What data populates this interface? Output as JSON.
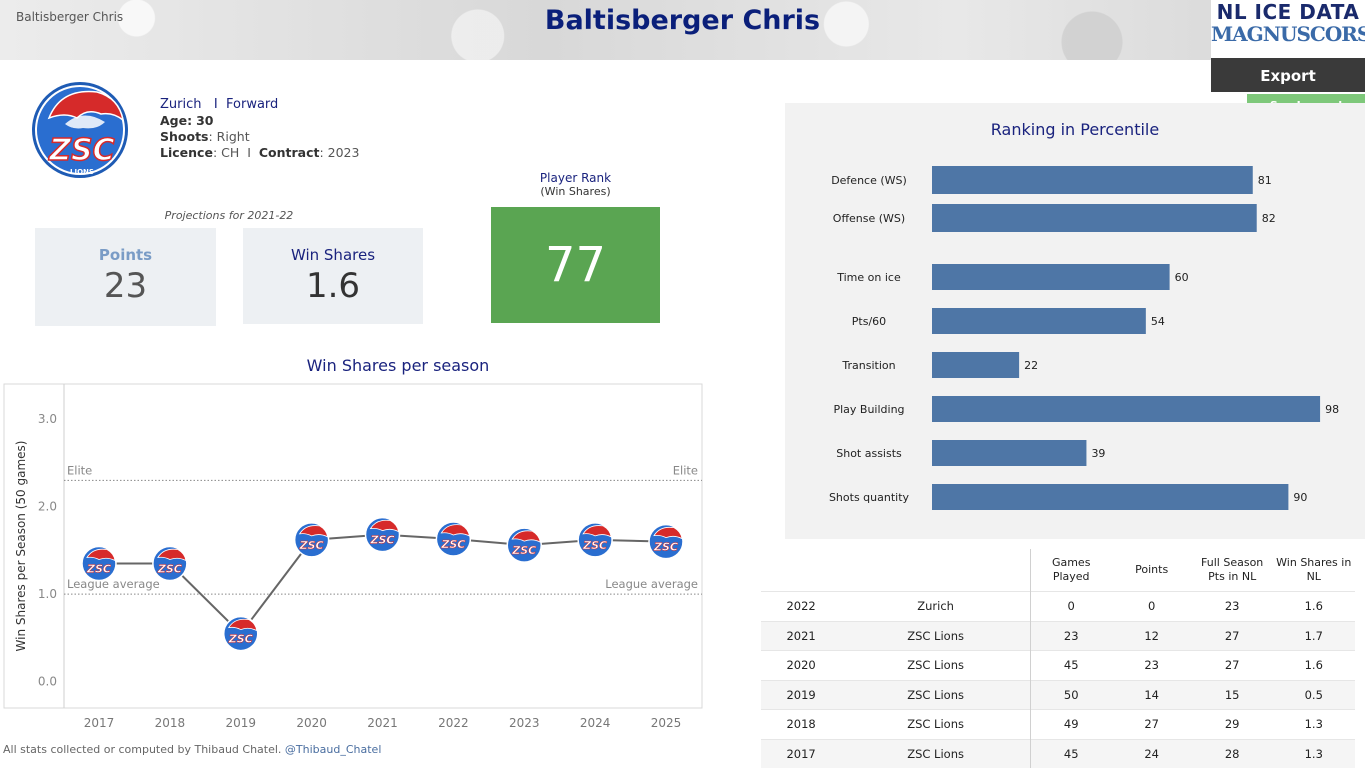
{
  "header": {
    "player_small": "Baltisberger Chris",
    "title": "Baltisberger Chris",
    "brand_line1": "NL ICE DATA",
    "brand_line2": "MAGNUSCORSI",
    "export_label": "Export",
    "legend_label": "See Legend"
  },
  "player": {
    "team": "Zurich",
    "separator": "I",
    "position": "Forward",
    "age_label": "Age:",
    "age": "30",
    "shoots_label": "Shoots",
    "shoots": ": Right",
    "licence_label": "Licence",
    "licence": ": CH",
    "contract_label": "Contract",
    "contract": ": 2023",
    "logo_text": "ZSC",
    "logo_sub": "LIONS"
  },
  "projections": {
    "label": "Projections for 2021-22",
    "points_label": "Points",
    "points_value": "23",
    "ws_label": "Win Shares",
    "ws_value": "1.6",
    "rank_label": "Player Rank",
    "rank_sub": "(Win Shares)",
    "rank_value": "77"
  },
  "colors": {
    "title": "#0a1f7a",
    "bar": "#4e76a6",
    "rank_box": "#5aa552",
    "points_label": "#7a9cc6",
    "ws_label": "#1a237e",
    "line": "#666666"
  },
  "ws_chart": {
    "title": "Win Shares per season",
    "ylabel": "Win Shares per Season (50 games)",
    "elite_label": "Elite",
    "avg_label": "League average"
  },
  "chart_data": [
    {
      "type": "line",
      "title": "Win Shares per season",
      "ylabel": "Win Shares per Season (50 games)",
      "x": [
        "2017",
        "2018",
        "2019",
        "2020",
        "2021",
        "2022",
        "2023",
        "2024",
        "2025"
      ],
      "series": [
        {
          "values": [
            1.35,
            1.35,
            0.55,
            1.62,
            1.68,
            1.63,
            1.56,
            1.62,
            1.6
          ]
        }
      ],
      "ylim": [
        -0.3,
        3.4
      ],
      "yticks": [
        "0.0",
        "1.0",
        "2.0",
        "3.0"
      ],
      "ytick_values": [
        0,
        1,
        2,
        3
      ],
      "reference_lines": [
        {
          "label": "Elite",
          "value": 2.3
        },
        {
          "label": "League average",
          "value": 1.0
        }
      ]
    },
    {
      "type": "bar",
      "title": "Ranking in Percentile",
      "categories": [
        "Defence (WS)",
        "Offense (WS)",
        "Time on ice",
        "Pts/60",
        "Transition",
        "Play Building",
        "Shot assists",
        "Shots quantity"
      ],
      "values": [
        81,
        82,
        60,
        54,
        22,
        98,
        39,
        90
      ],
      "xlim": [
        0,
        100
      ]
    }
  ],
  "table": {
    "headers": [
      "",
      "",
      "Games Played",
      "Points",
      "Full Season Pts in NL",
      "Win Shares in NL"
    ],
    "rows": [
      [
        "2022",
        "Zurich",
        "0",
        "0",
        "23",
        "1.6"
      ],
      [
        "2021",
        "ZSC Lions",
        "23",
        "12",
        "27",
        "1.7"
      ],
      [
        "2020",
        "ZSC Lions",
        "45",
        "23",
        "27",
        "1.6"
      ],
      [
        "2019",
        "ZSC Lions",
        "50",
        "14",
        "15",
        "0.5"
      ],
      [
        "2018",
        "ZSC Lions",
        "49",
        "27",
        "29",
        "1.3"
      ],
      [
        "2017",
        "ZSC Lions",
        "45",
        "24",
        "28",
        "1.3"
      ]
    ]
  },
  "footer": {
    "text": "All stats collected or computed by Thibaud Chatel.",
    "handle": "@Thibaud_Chatel"
  }
}
